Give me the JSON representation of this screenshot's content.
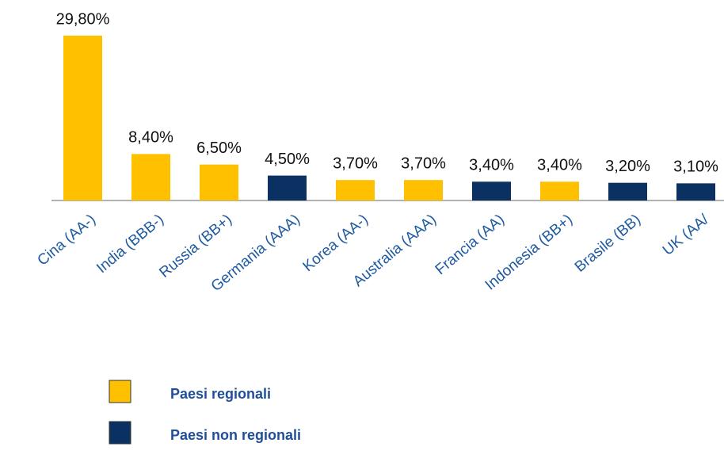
{
  "chart_data": {
    "type": "bar",
    "categories": [
      "Cina (AA-)",
      "India (BBB-)",
      "Russia (BB+)",
      "Germania (AAA)",
      "Korea (AA-)",
      "Australia (AAA)",
      "Francia (AA)",
      "Indonesia (BB+)",
      "Brasile (BB)",
      "UK (AA/"
    ],
    "series": [
      {
        "name": "Paesi regionali",
        "color": "#ffc000",
        "values": [
          29.8,
          8.4,
          6.5,
          null,
          3.7,
          3.7,
          null,
          3.4,
          null,
          null
        ],
        "value_labels": [
          "29,80%",
          "8,40%",
          "6,50%",
          null,
          "3,70%",
          "3,70%",
          null,
          "3,40%",
          null,
          null
        ]
      },
      {
        "name": "Paesi non regionali",
        "color": "#0a3161",
        "values": [
          null,
          null,
          null,
          4.5,
          null,
          null,
          3.4,
          null,
          3.2,
          3.1
        ],
        "value_labels": [
          null,
          null,
          null,
          "4,50%",
          null,
          null,
          "3,40%",
          null,
          "3,20%",
          "3,10%"
        ]
      }
    ]
  }
}
